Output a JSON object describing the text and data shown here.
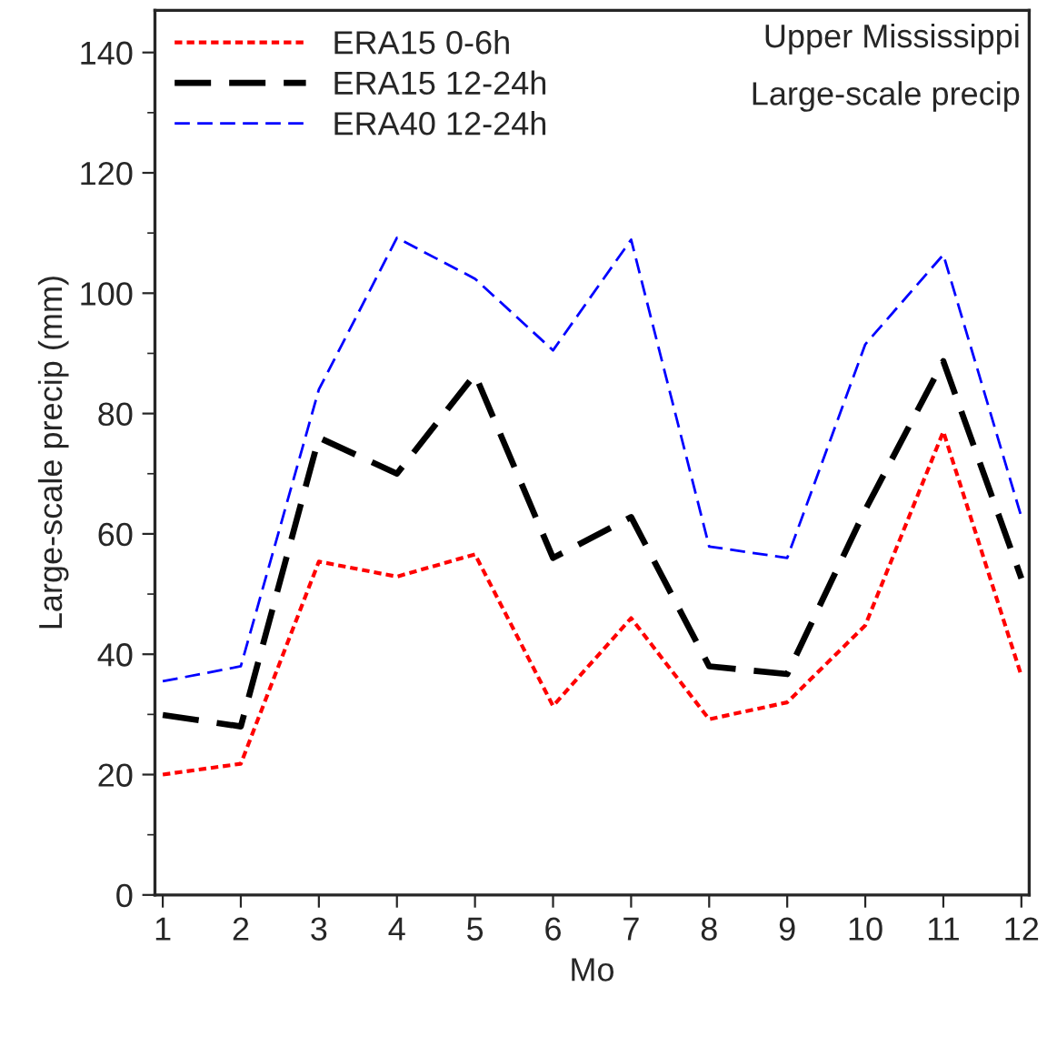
{
  "chart_data": {
    "type": "line",
    "xlabel": "Mo",
    "ylabel": "Large-scale precip (mm)",
    "x": [
      1,
      2,
      3,
      4,
      5,
      6,
      7,
      8,
      9,
      10,
      11,
      12
    ],
    "series": [
      {
        "name": "ERA15 0-6h",
        "color": "#ff0000",
        "line_style": "dotted",
        "values": [
          20,
          21.8,
          55.4,
          52.9,
          56.6,
          31.4,
          46,
          29.2,
          32,
          44.8,
          77,
          36.4
        ]
      },
      {
        "name": "ERA15 12-24h",
        "color": "#000000",
        "line_style": "dashed",
        "values": [
          29.9,
          28,
          76,
          70,
          86.5,
          56,
          62.8,
          38,
          36.7,
          64,
          88.7,
          52.6
        ]
      },
      {
        "name": "ERA40 12-24h",
        "color": "#0000ff",
        "line_style": "dashed",
        "values": [
          35.5,
          38,
          84,
          109.2,
          102.4,
          90.5,
          108.9,
          57.9,
          56,
          91.5,
          106.4,
          62.8
        ]
      }
    ],
    "xlim": [
      0.9,
      12.1
    ],
    "xticks": [
      1,
      2,
      3,
      4,
      5,
      6,
      7,
      8,
      9,
      10,
      11,
      12
    ],
    "ylim": [
      0,
      147
    ],
    "yticks": [
      0,
      20,
      40,
      60,
      80,
      100,
      120,
      140
    ],
    "annotations": [
      "Upper Mississippi",
      "Large-scale precip"
    ],
    "legend": "top left",
    "grid": false,
    "marker": "none"
  }
}
